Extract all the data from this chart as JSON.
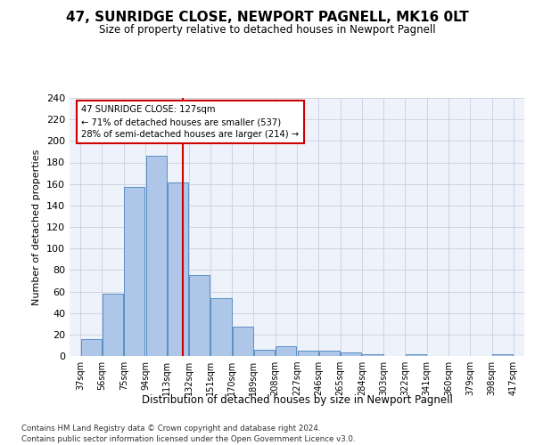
{
  "title": "47, SUNRIDGE CLOSE, NEWPORT PAGNELL, MK16 0LT",
  "subtitle": "Size of property relative to detached houses in Newport Pagnell",
  "xlabel": "Distribution of detached houses by size in Newport Pagnell",
  "ylabel": "Number of detached properties",
  "bins": [
    37,
    56,
    75,
    94,
    113,
    132,
    151,
    170,
    189,
    208,
    227,
    246,
    265,
    284,
    303,
    322,
    341,
    360,
    379,
    398,
    417
  ],
  "counts": [
    16,
    58,
    157,
    186,
    161,
    75,
    54,
    27,
    6,
    9,
    5,
    5,
    3,
    2,
    0,
    2,
    0,
    0,
    0,
    2
  ],
  "bar_color": "#aec6e8",
  "bar_edge_color": "#5a8fc2",
  "property_size": 127,
  "red_line_color": "#cc0000",
  "annotation_line1": "47 SUNRIDGE CLOSE: 127sqm",
  "annotation_line2": "← 71% of detached houses are smaller (537)",
  "annotation_line3": "28% of semi-detached houses are larger (214) →",
  "annotation_box_color": "#ffffff",
  "annotation_box_edge_color": "#cc0000",
  "ylim": [
    0,
    240
  ],
  "yticks": [
    0,
    20,
    40,
    60,
    80,
    100,
    120,
    140,
    160,
    180,
    200,
    220,
    240
  ],
  "bg_color": "#eef2fb",
  "footer_line1": "Contains HM Land Registry data © Crown copyright and database right 2024.",
  "footer_line2": "Contains public sector information licensed under the Open Government Licence v3.0."
}
